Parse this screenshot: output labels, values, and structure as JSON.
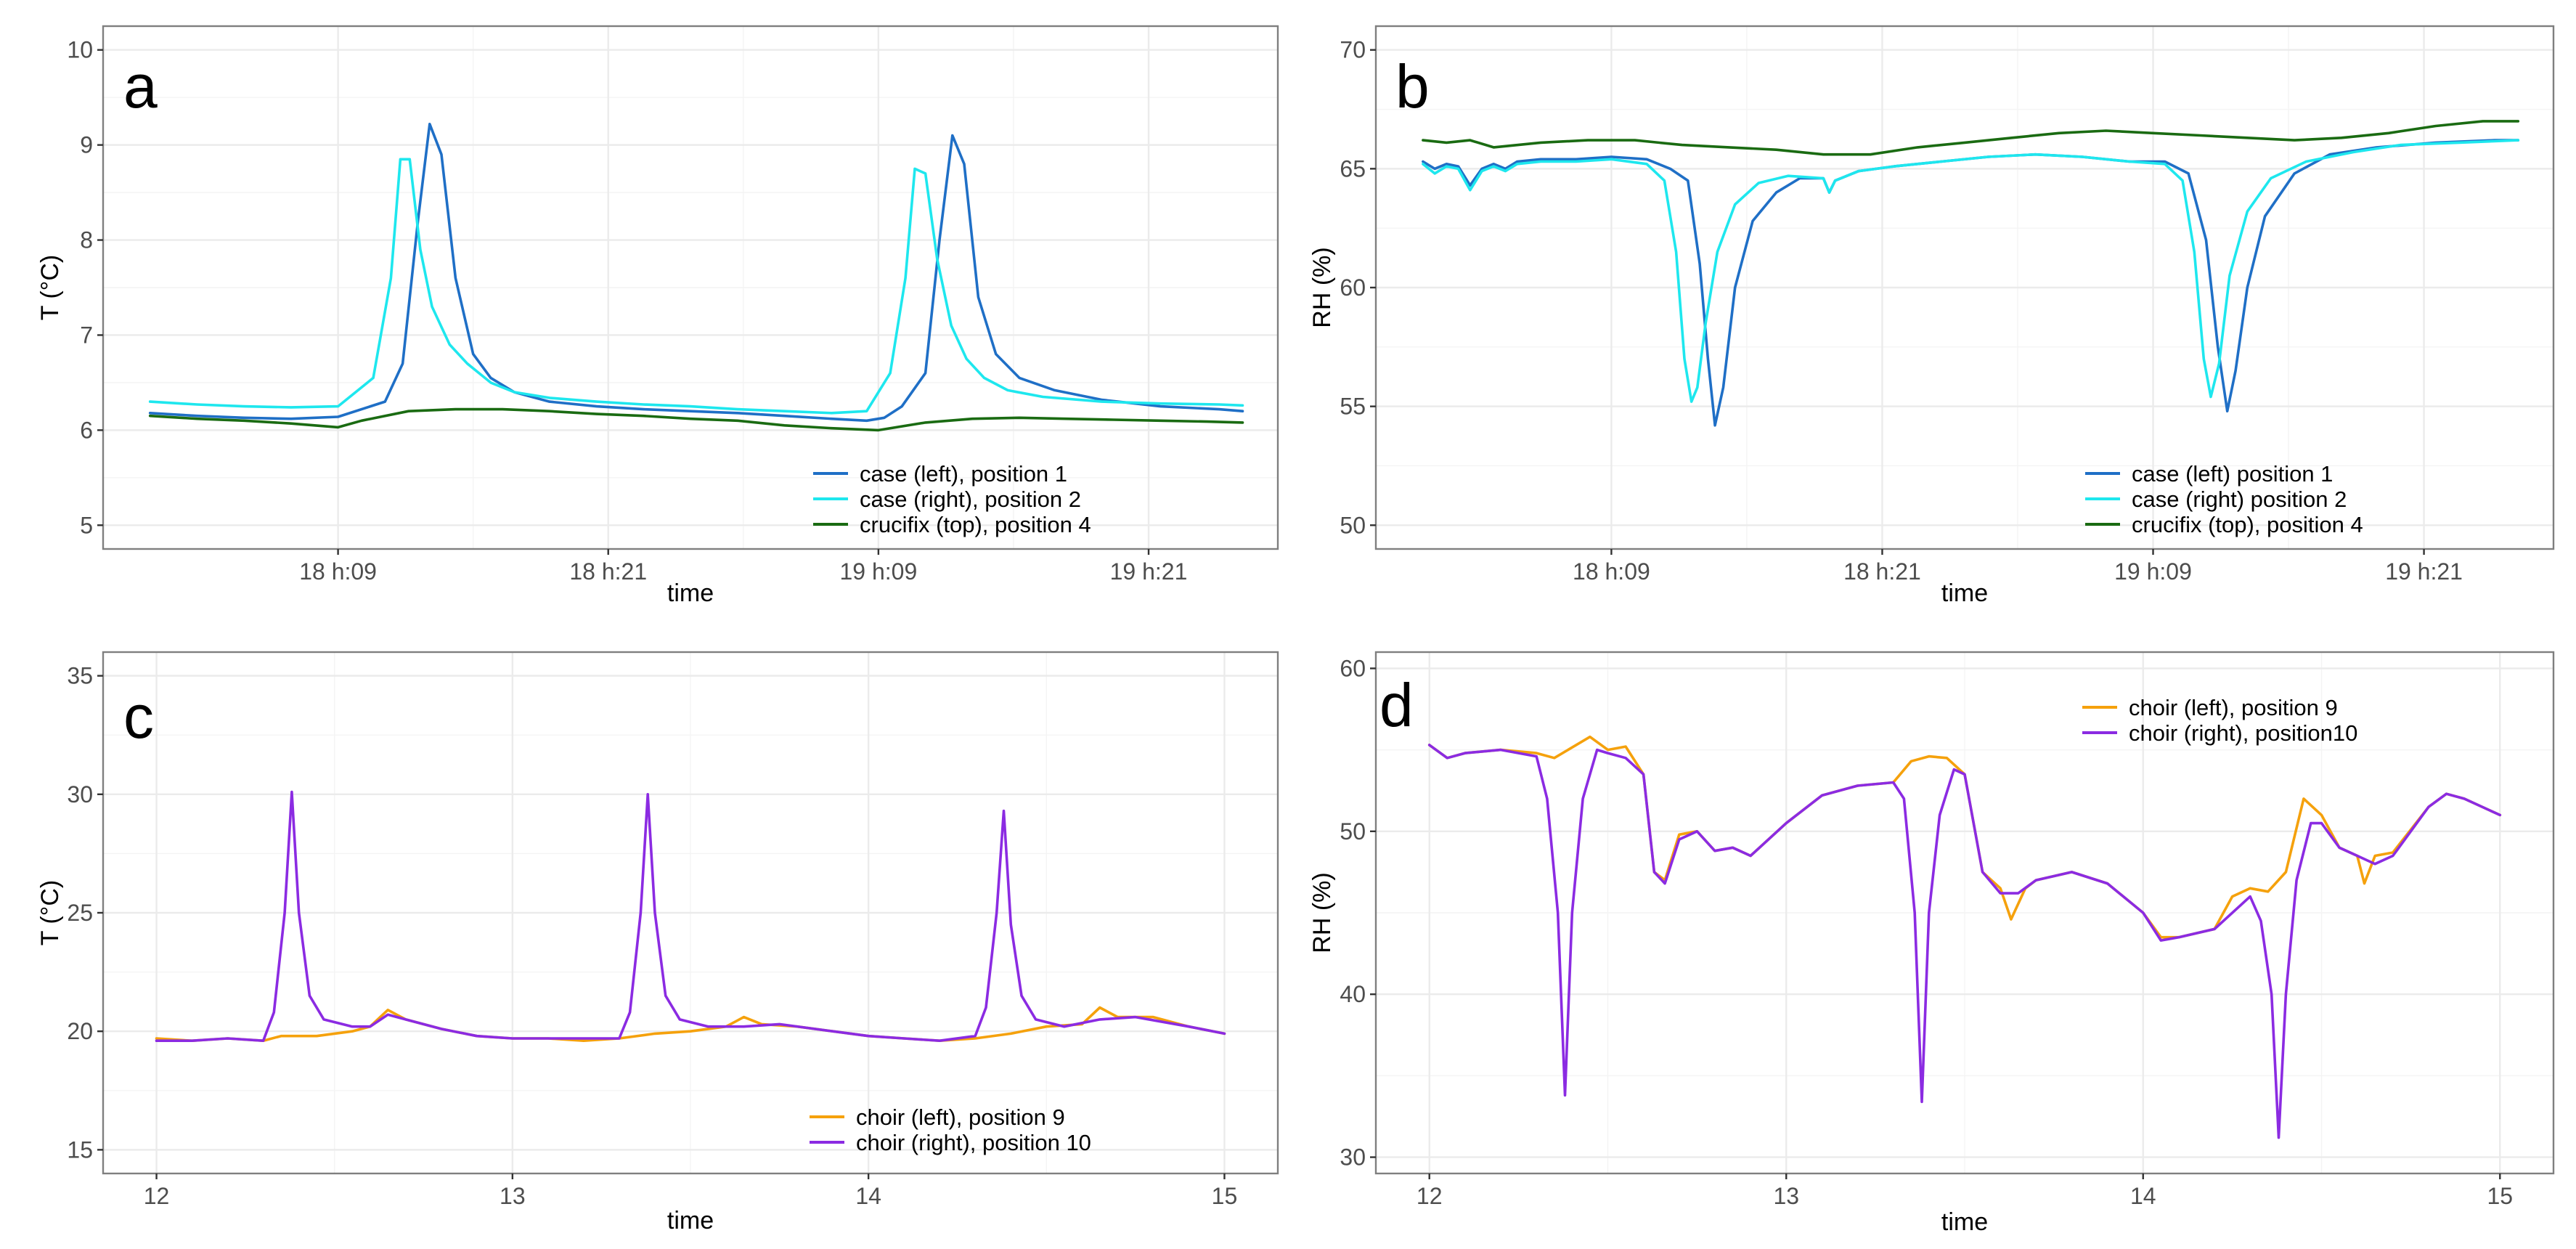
{
  "chart_data": [
    {
      "panel_label": "a",
      "type": "line",
      "xlabel": "time",
      "ylabel": "T (°C)",
      "xlim": [
        0,
        100
      ],
      "ylim": [
        4.75,
        10.25
      ],
      "x_ticks": [
        {
          "value": 20,
          "label": "18 h:09"
        },
        {
          "value": 43,
          "label": "18 h:21"
        },
        {
          "value": 66,
          "label": "19 h:09"
        },
        {
          "value": 89,
          "label": "19 h:21"
        }
      ],
      "y_ticks": [
        {
          "value": 5,
          "label": "5"
        },
        {
          "value": 6,
          "label": "6"
        },
        {
          "value": 7,
          "label": "7"
        },
        {
          "value": 8,
          "label": "8"
        },
        {
          "value": 9,
          "label": "9"
        },
        {
          "value": 10,
          "label": "10"
        }
      ],
      "legend_position": "bottom-right",
      "series": [
        {
          "name": "case (left), position 1",
          "color": "#1f6fc6",
          "x": [
            4,
            8,
            12,
            16,
            20,
            24,
            25.5,
            26.8,
            27.8,
            28.8,
            30,
            31.5,
            33,
            35,
            38,
            42,
            46,
            50,
            54,
            58,
            62,
            65,
            66.5,
            68,
            70,
            71.2,
            72.3,
            73.3,
            74.5,
            76,
            78,
            81,
            85,
            90,
            95,
            97
          ],
          "values": [
            6.18,
            6.15,
            6.13,
            6.12,
            6.14,
            6.3,
            6.7,
            8.2,
            9.22,
            8.9,
            7.6,
            6.8,
            6.55,
            6.4,
            6.3,
            6.25,
            6.22,
            6.2,
            6.18,
            6.15,
            6.12,
            6.1,
            6.13,
            6.25,
            6.6,
            8.0,
            9.1,
            8.8,
            7.4,
            6.8,
            6.55,
            6.42,
            6.32,
            6.25,
            6.22,
            6.2
          ]
        },
        {
          "name": "case (right), position 2",
          "color": "#1ee7ee",
          "x": [
            4,
            8,
            12,
            16,
            20,
            23,
            24.5,
            25.3,
            26.1,
            27,
            28,
            29.5,
            31,
            33,
            35,
            38,
            42,
            46,
            50,
            54,
            58,
            62,
            65,
            67,
            68.3,
            69.1,
            70,
            71,
            72.2,
            73.5,
            75,
            77,
            80,
            85,
            90,
            95,
            97
          ],
          "values": [
            6.3,
            6.27,
            6.25,
            6.24,
            6.25,
            6.55,
            7.6,
            8.85,
            8.85,
            7.9,
            7.3,
            6.9,
            6.7,
            6.5,
            6.4,
            6.34,
            6.3,
            6.27,
            6.25,
            6.22,
            6.2,
            6.18,
            6.2,
            6.6,
            7.6,
            8.75,
            8.7,
            7.8,
            7.1,
            6.75,
            6.55,
            6.42,
            6.35,
            6.3,
            6.28,
            6.27,
            6.26
          ]
        },
        {
          "name": "crucifix (top), position 4",
          "color": "#1a6b12",
          "x": [
            4,
            8,
            12,
            16,
            20,
            22,
            26,
            30,
            34,
            38,
            42,
            46,
            50,
            54,
            58,
            62,
            66,
            70,
            74,
            78,
            82,
            86,
            90,
            94,
            97
          ],
          "values": [
            6.15,
            6.12,
            6.1,
            6.07,
            6.03,
            6.1,
            6.2,
            6.22,
            6.22,
            6.2,
            6.17,
            6.15,
            6.12,
            6.1,
            6.05,
            6.02,
            6.0,
            6.08,
            6.12,
            6.13,
            6.12,
            6.11,
            6.1,
            6.09,
            6.08
          ]
        }
      ]
    },
    {
      "panel_label": "b",
      "type": "line",
      "xlabel": "time",
      "ylabel": "RH (%)",
      "xlim": [
        0,
        100
      ],
      "ylim": [
        49,
        71
      ],
      "x_ticks": [
        {
          "value": 20,
          "label": "18 h:09"
        },
        {
          "value": 43,
          "label": "18 h:21"
        },
        {
          "value": 66,
          "label": "19 h:09"
        },
        {
          "value": 89,
          "label": "19 h:21"
        }
      ],
      "y_ticks": [
        {
          "value": 50,
          "label": "50"
        },
        {
          "value": 55,
          "label": "55"
        },
        {
          "value": 60,
          "label": "60"
        },
        {
          "value": 65,
          "label": "65"
        },
        {
          "value": 70,
          "label": "70"
        }
      ],
      "legend_position": "bottom-right",
      "series": [
        {
          "name": "case (left) position 1",
          "color": "#1f6fc6",
          "x": [
            4,
            5,
            6,
            7,
            8,
            9,
            10,
            11,
            12,
            14,
            17,
            20,
            23,
            25,
            26.5,
            27.5,
            28.2,
            28.8,
            29.5,
            30.5,
            32,
            34,
            36,
            38,
            38.5,
            39,
            41,
            44,
            48,
            52,
            56,
            60,
            64,
            67,
            69,
            70.5,
            71.5,
            72.3,
            73,
            74,
            75.5,
            78,
            81,
            85,
            90,
            95,
            97
          ],
          "values": [
            65.3,
            65.0,
            65.2,
            65.1,
            64.3,
            65.0,
            65.2,
            65.0,
            65.3,
            65.4,
            65.4,
            65.5,
            65.4,
            65.0,
            64.5,
            61.0,
            57.0,
            54.2,
            55.8,
            60.0,
            62.8,
            64.0,
            64.6,
            64.6,
            64.0,
            64.5,
            64.9,
            65.1,
            65.3,
            65.5,
            65.6,
            65.5,
            65.3,
            65.3,
            64.8,
            62.0,
            57.5,
            54.8,
            56.5,
            60.0,
            63.0,
            64.8,
            65.6,
            65.9,
            66.1,
            66.2,
            66.2
          ]
        },
        {
          "name": "case (right) position 2",
          "color": "#1ee7ee",
          "x": [
            4,
            5,
            6,
            7,
            8,
            9,
            10,
            11,
            12,
            14,
            17,
            20,
            23,
            24.5,
            25.5,
            26.2,
            26.8,
            27.3,
            28,
            29,
            30.5,
            32.5,
            35,
            38,
            38.5,
            39,
            41,
            44,
            48,
            52,
            56,
            60,
            64,
            67,
            68.5,
            69.5,
            70.3,
            70.9,
            71.6,
            72.5,
            74,
            76,
            79,
            83,
            87,
            92,
            97
          ],
          "values": [
            65.2,
            64.8,
            65.1,
            65.0,
            64.1,
            64.9,
            65.1,
            64.9,
            65.2,
            65.3,
            65.3,
            65.4,
            65.2,
            64.5,
            61.5,
            57.0,
            55.2,
            55.8,
            58.5,
            61.5,
            63.5,
            64.4,
            64.7,
            64.6,
            64.0,
            64.5,
            64.9,
            65.1,
            65.3,
            65.5,
            65.6,
            65.5,
            65.3,
            65.2,
            64.5,
            61.5,
            57.0,
            55.4,
            56.8,
            60.5,
            63.2,
            64.6,
            65.3,
            65.7,
            66.0,
            66.1,
            66.2
          ]
        },
        {
          "name": "crucifix (top), position 4",
          "color": "#1a6b12",
          "x": [
            4,
            6,
            8,
            10,
            14,
            18,
            22,
            26,
            30,
            34,
            38,
            42,
            46,
            50,
            54,
            58,
            62,
            66,
            70,
            74,
            78,
            82,
            86,
            90,
            94,
            97
          ],
          "values": [
            66.2,
            66.1,
            66.2,
            65.9,
            66.1,
            66.2,
            66.2,
            66.0,
            65.9,
            65.8,
            65.6,
            65.6,
            65.9,
            66.1,
            66.3,
            66.5,
            66.6,
            66.5,
            66.4,
            66.3,
            66.2,
            66.3,
            66.5,
            66.8,
            67.0,
            67.0
          ]
        }
      ]
    },
    {
      "panel_label": "c",
      "type": "line",
      "xlabel": "time",
      "ylabel": "T (°C)",
      "xlim": [
        11.85,
        15.15
      ],
      "ylim": [
        14,
        36
      ],
      "x_ticks": [
        {
          "value": 12,
          "label": "12"
        },
        {
          "value": 13,
          "label": "13"
        },
        {
          "value": 14,
          "label": "14"
        },
        {
          "value": 15,
          "label": "15"
        }
      ],
      "y_ticks": [
        {
          "value": 15,
          "label": "15"
        },
        {
          "value": 20,
          "label": "20"
        },
        {
          "value": 25,
          "label": "25"
        },
        {
          "value": 30,
          "label": "30"
        },
        {
          "value": 35,
          "label": "35"
        }
      ],
      "legend_position": "bottom-right",
      "series": [
        {
          "name": "choir (left), position 9",
          "color": "#f5a10c",
          "x": [
            12.0,
            12.1,
            12.2,
            12.3,
            12.35,
            12.45,
            12.55,
            12.6,
            12.65,
            12.7,
            12.8,
            12.9,
            13.0,
            13.1,
            13.2,
            13.3,
            13.4,
            13.5,
            13.6,
            13.65,
            13.7,
            13.8,
            13.9,
            14.0,
            14.1,
            14.2,
            14.3,
            14.4,
            14.5,
            14.6,
            14.65,
            14.7,
            14.8,
            14.9,
            15.0
          ],
          "values": [
            19.7,
            19.6,
            19.7,
            19.6,
            19.8,
            19.8,
            20.0,
            20.2,
            20.9,
            20.5,
            20.1,
            19.8,
            19.7,
            19.7,
            19.6,
            19.7,
            19.9,
            20.0,
            20.2,
            20.6,
            20.3,
            20.2,
            20.0,
            19.8,
            19.7,
            19.6,
            19.7,
            19.9,
            20.2,
            20.3,
            21.0,
            20.6,
            20.6,
            20.2,
            19.9
          ]
        },
        {
          "name": "choir (right), position 10",
          "color": "#8b2be2",
          "x": [
            12.0,
            12.1,
            12.2,
            12.3,
            12.33,
            12.36,
            12.38,
            12.4,
            12.43,
            12.47,
            12.55,
            12.6,
            12.65,
            12.7,
            12.8,
            12.9,
            13.0,
            13.1,
            13.2,
            13.3,
            13.33,
            13.36,
            13.38,
            13.4,
            13.43,
            13.47,
            13.55,
            13.65,
            13.75,
            13.9,
            14.0,
            14.1,
            14.2,
            14.3,
            14.33,
            14.36,
            14.38,
            14.4,
            14.43,
            14.47,
            14.55,
            14.65,
            14.75,
            14.9,
            15.0
          ],
          "values": [
            19.6,
            19.6,
            19.7,
            19.6,
            20.8,
            25.0,
            30.1,
            25.0,
            21.5,
            20.5,
            20.2,
            20.2,
            20.7,
            20.5,
            20.1,
            19.8,
            19.7,
            19.7,
            19.7,
            19.7,
            20.8,
            25.0,
            30.0,
            25.0,
            21.5,
            20.5,
            20.2,
            20.2,
            20.3,
            20.0,
            19.8,
            19.7,
            19.6,
            19.8,
            21.0,
            25.0,
            29.3,
            24.5,
            21.5,
            20.5,
            20.2,
            20.5,
            20.6,
            20.2,
            19.9
          ]
        }
      ]
    },
    {
      "panel_label": "d",
      "type": "line",
      "xlabel": "time",
      "ylabel": "RH (%)",
      "xlim": [
        11.85,
        15.15
      ],
      "ylim": [
        29,
        61
      ],
      "x_ticks": [
        {
          "value": 12,
          "label": "12"
        },
        {
          "value": 13,
          "label": "13"
        },
        {
          "value": 14,
          "label": "14"
        },
        {
          "value": 15,
          "label": "15"
        }
      ],
      "y_ticks": [
        {
          "value": 30,
          "label": "30"
        },
        {
          "value": 40,
          "label": "40"
        },
        {
          "value": 50,
          "label": "50"
        },
        {
          "value": 60,
          "label": "60"
        }
      ],
      "legend_position": "top-right",
      "series": [
        {
          "name": "choir (left), position 9",
          "color": "#f5a10c",
          "x": [
            12.0,
            12.05,
            12.1,
            12.2,
            12.3,
            12.35,
            12.45,
            12.5,
            12.55,
            12.6,
            12.63,
            12.66,
            12.7,
            12.75,
            12.8,
            12.85,
            12.9,
            13.0,
            13.1,
            13.2,
            13.3,
            13.35,
            13.4,
            13.45,
            13.5,
            13.55,
            13.6,
            13.63,
            13.67,
            13.7,
            13.8,
            13.9,
            14.0,
            14.05,
            14.1,
            14.2,
            14.25,
            14.3,
            14.35,
            14.4,
            14.45,
            14.5,
            14.55,
            14.6,
            14.62,
            14.65,
            14.7,
            14.8,
            14.85,
            14.9,
            15.0
          ],
          "values": [
            55.3,
            54.5,
            54.8,
            55.0,
            54.8,
            54.5,
            55.8,
            55.0,
            55.2,
            53.5,
            47.5,
            47.0,
            49.8,
            50.0,
            48.8,
            49.0,
            48.5,
            50.5,
            52.2,
            52.8,
            53.0,
            54.3,
            54.6,
            54.5,
            53.5,
            47.5,
            46.5,
            44.6,
            46.5,
            47.0,
            47.5,
            46.8,
            45.0,
            43.5,
            43.5,
            44.0,
            46.0,
            46.5,
            46.3,
            47.5,
            52.0,
            51.0,
            49.0,
            48.5,
            46.8,
            48.5,
            48.7,
            51.5,
            52.3,
            52.0,
            51.0
          ]
        },
        {
          "name": "choir (right), position10",
          "color": "#8b2be2",
          "x": [
            12.0,
            12.05,
            12.1,
            12.2,
            12.3,
            12.33,
            12.36,
            12.38,
            12.4,
            12.43,
            12.47,
            12.5,
            12.55,
            12.6,
            12.63,
            12.66,
            12.7,
            12.75,
            12.8,
            12.85,
            12.9,
            13.0,
            13.1,
            13.2,
            13.3,
            13.33,
            13.36,
            13.38,
            13.4,
            13.43,
            13.47,
            13.5,
            13.55,
            13.6,
            13.65,
            13.7,
            13.8,
            13.9,
            14.0,
            14.05,
            14.1,
            14.2,
            14.3,
            14.33,
            14.36,
            14.38,
            14.4,
            14.43,
            14.47,
            14.5,
            14.55,
            14.6,
            14.65,
            14.7,
            14.8,
            14.85,
            14.9,
            15.0
          ],
          "values": [
            55.3,
            54.5,
            54.8,
            55.0,
            54.6,
            52.0,
            45.0,
            33.8,
            45.0,
            52.0,
            55.0,
            54.8,
            54.5,
            53.5,
            47.5,
            46.8,
            49.5,
            50.0,
            48.8,
            49.0,
            48.5,
            50.5,
            52.2,
            52.8,
            53.0,
            52.0,
            45.0,
            33.4,
            45.0,
            51.0,
            53.8,
            53.5,
            47.5,
            46.2,
            46.2,
            47.0,
            47.5,
            46.8,
            45.0,
            43.3,
            43.5,
            44.0,
            46.0,
            44.5,
            40.0,
            31.2,
            40.0,
            47.0,
            50.5,
            50.5,
            49.0,
            48.5,
            48.0,
            48.5,
            51.5,
            52.3,
            52.0,
            51.0
          ]
        }
      ]
    }
  ]
}
